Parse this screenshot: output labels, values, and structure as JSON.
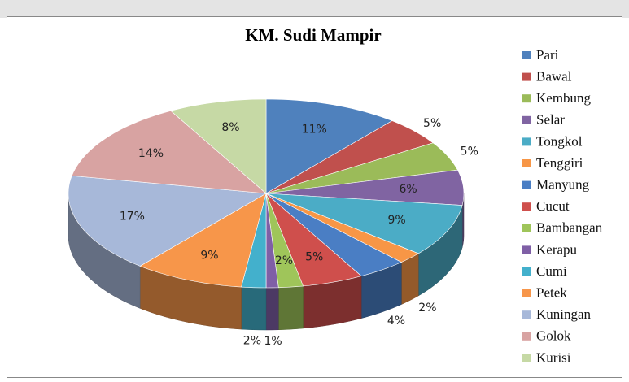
{
  "chart_data": {
    "type": "pie",
    "title": "KM. Sudi Mampir",
    "categories": [
      "Pari",
      "Bawal",
      "Kembung",
      "Selar",
      "Tongkol",
      "Tenggiri",
      "Manyung",
      "Cucut",
      "Bambangan",
      "Kerapu",
      "Cumi",
      "Petek",
      "Kuningan",
      "Golok",
      "Kurisi"
    ],
    "values": [
      11,
      5,
      5,
      6,
      9,
      2,
      4,
      5,
      2,
      1,
      2,
      9,
      17,
      14,
      8
    ],
    "value_labels": [
      "11%",
      "5%",
      "5%",
      "6%",
      "9%",
      "2%",
      "4%",
      "5%",
      "2%",
      "1%",
      "2%",
      "9%",
      "17%",
      "14%",
      "8%"
    ],
    "colors": [
      "#4f81bd",
      "#c0504d",
      "#9bbb59",
      "#8064a2",
      "#4bacc6",
      "#f79646",
      "#4a7ec4",
      "#cf4f4c",
      "#9fc55a",
      "#7f5fa6",
      "#43b0cc",
      "#f7964a",
      "#a7b8d9",
      "#d8a3a2",
      "#c6d9a5"
    ],
    "legend": "right"
  }
}
